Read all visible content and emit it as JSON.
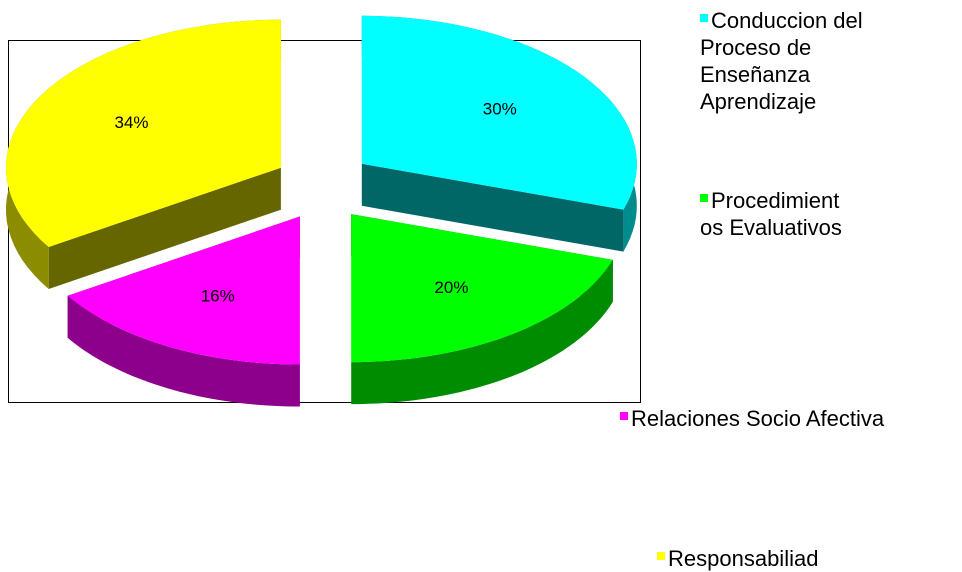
{
  "chart_data": {
    "type": "pie3d",
    "categories": [
      "Conduccion del Proceso de Enseñanza Aprendizaje",
      "Procedimientos Evaluativos",
      "Relaciones Socio Afectiva",
      "Responsabiliad"
    ],
    "values": [
      30,
      20,
      16,
      34
    ],
    "value_labels": [
      "30%",
      "20%",
      "16%",
      "34%"
    ],
    "colors": [
      "#00ffff",
      "#00ff00",
      "#ff00ff",
      "#ffff00"
    ]
  }
}
